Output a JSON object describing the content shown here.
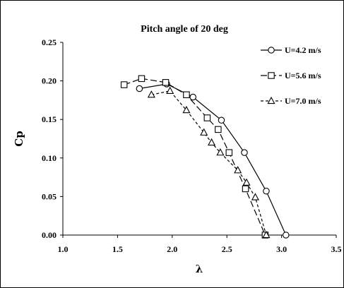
{
  "chart_data": {
    "type": "line",
    "title": "Pitch angle of 20 deg",
    "xlabel": "λ",
    "ylabel": "Cp",
    "xlim": [
      1.0,
      3.5
    ],
    "ylim": [
      0.0,
      0.25
    ],
    "xticks": [
      "1.0",
      "1.5",
      "2.0",
      "2.5",
      "3.0",
      "3.5"
    ],
    "yticks": [
      "0.00",
      "0.05",
      "0.10",
      "0.15",
      "0.20",
      "0.25"
    ],
    "grid": false,
    "legend_position": "top-right",
    "series": [
      {
        "name": "U=4.2 m/s",
        "marker": "circle",
        "line": "solid",
        "x": [
          1.7,
          1.95,
          2.19,
          2.45,
          2.66,
          2.86,
          3.04
        ],
        "y": [
          0.19,
          0.196,
          0.179,
          0.149,
          0.107,
          0.057,
          0.0
        ]
      },
      {
        "name": "U=5.6 m/s",
        "marker": "square",
        "line": "dash-long",
        "x": [
          1.56,
          1.72,
          1.94,
          2.13,
          2.32,
          2.42,
          2.52,
          2.67,
          2.85
        ],
        "y": [
          0.195,
          0.203,
          0.198,
          0.182,
          0.152,
          0.137,
          0.107,
          0.06,
          0.0
        ]
      },
      {
        "name": "U=7.0 m/s",
        "marker": "triangle",
        "line": "dash-short",
        "x": [
          1.81,
          1.98,
          2.13,
          2.29,
          2.36,
          2.44,
          2.6,
          2.68,
          2.76,
          2.86
        ],
        "y": [
          0.182,
          0.187,
          0.162,
          0.133,
          0.12,
          0.107,
          0.084,
          0.068,
          0.049,
          0.0
        ]
      }
    ]
  }
}
